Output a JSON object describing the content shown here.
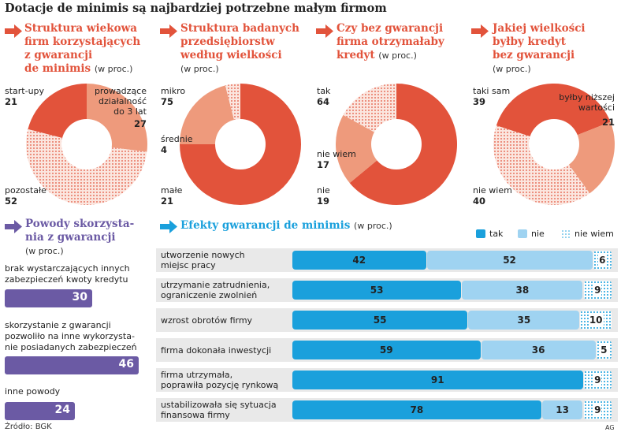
{
  "title": "Dotacje de minimis są najbardziej potrzebne małym firmom",
  "unit": "(w proc.)",
  "colors": {
    "red": "#e2533b",
    "salmon": "#ee9a7c",
    "purple": "#6b5aa4",
    "blue": "#1aa0dc",
    "lightblue": "#9fd3f1"
  },
  "panels": [
    {
      "title_lines": [
        "Struktura wiekowa",
        "firm korzystających",
        "z gwarancji",
        "de minimis"
      ],
      "labels": [
        {
          "text": [
            "start-upy"
          ],
          "value": "21"
        },
        {
          "text": [
            "prowadzące",
            "działalność",
            "do 3 lat"
          ],
          "value": "27"
        },
        {
          "text": [
            "pozostałe"
          ],
          "value": "52"
        }
      ]
    },
    {
      "title_lines": [
        "Struktura badanych",
        "przedsiębiorstw",
        "według wielkości"
      ],
      "labels": [
        {
          "text": [
            "mikro"
          ],
          "value": "75"
        },
        {
          "text": [
            "średnie"
          ],
          "value": "4"
        },
        {
          "text": [
            "małe"
          ],
          "value": "21"
        }
      ]
    },
    {
      "title_lines": [
        "Czy bez gwarancji",
        "firma otrzymałaby",
        "kredyt"
      ],
      "labels": [
        {
          "text": [
            "tak"
          ],
          "value": "64"
        },
        {
          "text": [
            "nie wiem"
          ],
          "value": "17"
        },
        {
          "text": [
            "nie"
          ],
          "value": "19"
        }
      ]
    },
    {
      "title_lines": [
        "Jakiej wielkości",
        "byłby kredyt",
        "bez gwarancji"
      ],
      "labels": [
        {
          "text": [
            "taki sam"
          ],
          "value": "39"
        },
        {
          "text": [
            "byłby niższej",
            "wartości"
          ],
          "value": "21"
        },
        {
          "text": [
            "nie wiem"
          ],
          "value": "40"
        }
      ]
    }
  ],
  "reasons": {
    "title_lines": [
      "Powody skorzysta-",
      "nia z gwarancji"
    ],
    "items": [
      {
        "text": [
          "brak wystarczających innych",
          "zabezpieczeń kwoty kredytu"
        ],
        "value": "30"
      },
      {
        "text": [
          "skorzystanie z gwarancji",
          "pozwoliło na inne wykorzysta-",
          "nie posiadanych zabezpieczeń"
        ],
        "value": "46"
      },
      {
        "text": [
          "inne powody"
        ],
        "value": "24"
      }
    ]
  },
  "effects": {
    "title": "Efekty gwarancji de minimis",
    "legend": [
      "tak",
      "nie",
      "nie wiem"
    ],
    "rows": [
      {
        "label": [
          "utworzenie nowych",
          "miejsc pracy"
        ],
        "tak": "42",
        "nie": "52",
        "nw": "6"
      },
      {
        "label": [
          "utrzymanie zatrudnienia,",
          "ograniczenie zwolnień"
        ],
        "tak": "53",
        "nie": "38",
        "nw": "9"
      },
      {
        "label": [
          "wzrost obrotów firmy"
        ],
        "tak": "55",
        "nie": "35",
        "nw": "10"
      },
      {
        "label": [
          "firma dokonała inwestycji"
        ],
        "tak": "59",
        "nie": "36",
        "nw": "5"
      },
      {
        "label": [
          "firma utrzymała,",
          "poprawiła pozycję rynkową"
        ],
        "tak": "91",
        "nie": "",
        "nw": "9"
      },
      {
        "label": [
          "ustabilizowała się sytuacja",
          "finansowa firmy"
        ],
        "tak": "78",
        "nie": "13",
        "nw": "9"
      }
    ]
  },
  "source": "Źródło: BGK",
  "credit": "AG",
  "chart_data": [
    {
      "type": "pie",
      "title": "Struktura wiekowa firm korzystających z gwarancji de minimis",
      "categories": [
        "start-upy",
        "prowadzące działalność do 3 lat",
        "pozostałe"
      ],
      "values": [
        21,
        27,
        52
      ]
    },
    {
      "type": "pie",
      "title": "Struktura badanych przedsiębiorstw według wielkości",
      "categories": [
        "mikro",
        "średnie",
        "małe"
      ],
      "values": [
        75,
        4,
        21
      ]
    },
    {
      "type": "pie",
      "title": "Czy bez gwarancji firma otrzymałaby kredyt",
      "categories": [
        "tak",
        "nie",
        "nie wiem"
      ],
      "values": [
        64,
        19,
        17
      ]
    },
    {
      "type": "pie",
      "title": "Jakiej wielkości byłby kredyt bez gwarancji",
      "categories": [
        "taki sam",
        "byłby niższej wartości",
        "nie wiem"
      ],
      "values": [
        39,
        21,
        40
      ]
    },
    {
      "type": "bar",
      "title": "Powody skorzystania z gwarancji",
      "categories": [
        "brak wystarczających innych zabezpieczeń kwoty kredytu",
        "skorzystanie z gwarancji pozwoliło na inne wykorzystanie posiadanych zabezpieczeń",
        "inne powody"
      ],
      "values": [
        30,
        46,
        24
      ]
    },
    {
      "type": "bar",
      "title": "Efekty gwarancji de minimis",
      "categories": [
        "utworzenie nowych miejsc pracy",
        "utrzymanie zatrudnienia, ograniczenie zwolnień",
        "wzrost obrotów firmy",
        "firma dokonała inwestycji",
        "firma utrzymała, poprawiła pozycję rynkową",
        "ustabilizowała się sytuacja finansowa firmy"
      ],
      "series": [
        {
          "name": "tak",
          "values": [
            42,
            53,
            55,
            59,
            91,
            78
          ]
        },
        {
          "name": "nie",
          "values": [
            52,
            38,
            35,
            36,
            0,
            13
          ]
        },
        {
          "name": "nie wiem",
          "values": [
            6,
            9,
            10,
            5,
            9,
            9
          ]
        }
      ]
    }
  ]
}
